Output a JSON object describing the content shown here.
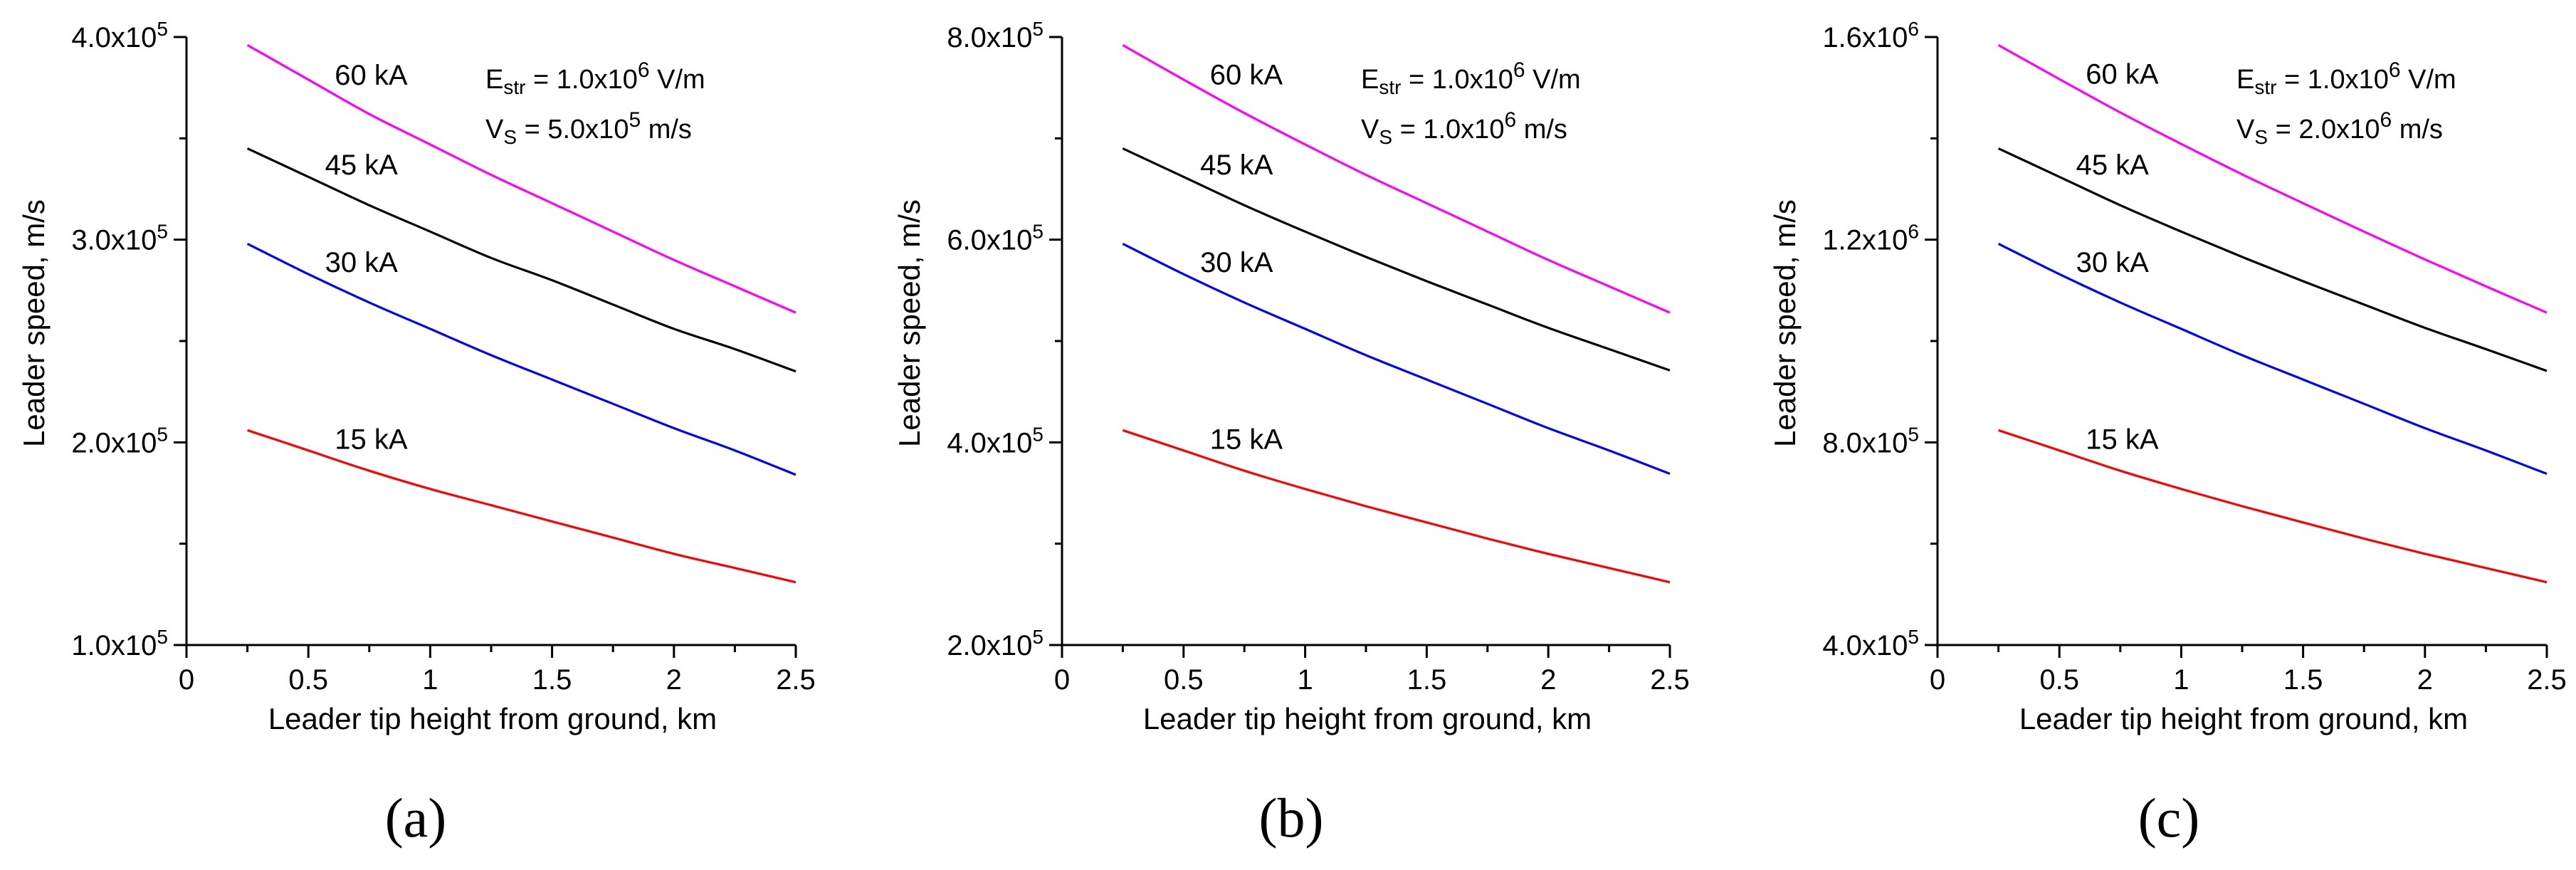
{
  "figure": {
    "panel_labels": [
      "(a)",
      "(b)",
      "(c)"
    ]
  },
  "chart_data": [
    {
      "type": "line",
      "panel": "(a)",
      "xlabel": "Leader tip height from ground, km",
      "ylabel": "Leader speed, m/s",
      "xlim": [
        0,
        2.5
      ],
      "ylim": [
        100000,
        400000
      ],
      "x_ticks": [
        "0",
        "0.5",
        "1",
        "1.5",
        "2",
        "2.5"
      ],
      "y_ticks": [
        {
          "value": 100000,
          "mantissa": "1.0x10",
          "exp": "5"
        },
        {
          "value": 200000,
          "mantissa": "2.0x10",
          "exp": "5"
        },
        {
          "value": 300000,
          "mantissa": "3.0x10",
          "exp": "5"
        },
        {
          "value": 400000,
          "mantissa": "4.0x10",
          "exp": "5"
        }
      ],
      "grid": false,
      "annotation": {
        "line1": {
          "sym": "E",
          "sub": "str",
          "text": " = 1.0x10",
          "sup": "6",
          "unit": " V/m"
        },
        "line2": {
          "sym": "V",
          "sub": "S",
          "text": " = 5.0x10",
          "sup": "5",
          "unit": " m/s"
        }
      },
      "x": [
        0.25,
        0.5,
        0.75,
        1.0,
        1.25,
        1.5,
        1.75,
        2.0,
        2.25,
        2.5
      ],
      "series": [
        {
          "name": "60 kA",
          "color": "#ff00ff",
          "values": [
            396000,
            379000,
            362000,
            347000,
            332000,
            318000,
            304000,
            290000,
            277000,
            264000
          ]
        },
        {
          "name": "45 kA",
          "color": "#000000",
          "values": [
            345000,
            331000,
            317000,
            304000,
            291000,
            280000,
            268000,
            256000,
            246000,
            235000
          ]
        },
        {
          "name": "30 kA",
          "color": "#0000ff",
          "values": [
            298000,
            283000,
            269000,
            256000,
            243000,
            231000,
            219000,
            207000,
            196000,
            184000
          ]
        },
        {
          "name": "15 kA",
          "color": "#ff0000",
          "values": [
            206000,
            196000,
            186000,
            177000,
            169000,
            161000,
            153000,
            145000,
            138000,
            131000
          ]
        }
      ]
    },
    {
      "type": "line",
      "panel": "(b)",
      "xlabel": "Leader tip height from ground, km",
      "ylabel": "Leader speed, m/s",
      "xlim": [
        0,
        2.5
      ],
      "ylim": [
        200000,
        800000
      ],
      "x_ticks": [
        "0",
        "0.5",
        "1",
        "1.5",
        "2",
        "2.5"
      ],
      "y_ticks": [
        {
          "value": 200000,
          "mantissa": "2.0x10",
          "exp": "5"
        },
        {
          "value": 400000,
          "mantissa": "4.0x10",
          "exp": "5"
        },
        {
          "value": 600000,
          "mantissa": "6.0x10",
          "exp": "5"
        },
        {
          "value": 800000,
          "mantissa": "8.0x10",
          "exp": "5"
        }
      ],
      "grid": false,
      "annotation": {
        "line1": {
          "sym": "E",
          "sub": "str",
          "text": " = 1.0x10",
          "sup": "6",
          "unit": " V/m"
        },
        "line2": {
          "sym": "V",
          "sub": "S",
          "text": " = 1.0x10",
          "sup": "6",
          "unit": " m/s"
        }
      },
      "x": [
        0.25,
        0.5,
        0.75,
        1.0,
        1.25,
        1.5,
        1.75,
        2.0,
        2.25,
        2.5
      ],
      "series": [
        {
          "name": "60 kA",
          "color": "#ff00ff",
          "values": [
            792000,
            758000,
            725000,
            694000,
            664000,
            636000,
            608000,
            580000,
            554000,
            528000
          ]
        },
        {
          "name": "45 kA",
          "color": "#000000",
          "values": [
            690000,
            662000,
            634000,
            608000,
            583000,
            559000,
            536000,
            513000,
            492000,
            471000
          ]
        },
        {
          "name": "30 kA",
          "color": "#0000ff",
          "values": [
            596000,
            566000,
            538000,
            512000,
            486000,
            462000,
            438000,
            414000,
            392000,
            369000
          ]
        },
        {
          "name": "15 kA",
          "color": "#ff0000",
          "values": [
            412000,
            392000,
            372000,
            354000,
            337000,
            321000,
            305000,
            290000,
            276000,
            262000
          ]
        }
      ]
    },
    {
      "type": "line",
      "panel": "(c)",
      "xlabel": "Leader tip height from ground, km",
      "ylabel": "Leader speed, m/s",
      "xlim": [
        0,
        2.5
      ],
      "ylim": [
        400000,
        1600000
      ],
      "x_ticks": [
        "0",
        "0.5",
        "1",
        "1.5",
        "2",
        "2.5"
      ],
      "y_ticks": [
        {
          "value": 400000,
          "mantissa": "4.0x10",
          "exp": "5"
        },
        {
          "value": 800000,
          "mantissa": "8.0x10",
          "exp": "5"
        },
        {
          "value": 1200000,
          "mantissa": "1.2x10",
          "exp": "6"
        },
        {
          "value": 1600000,
          "mantissa": "1.6x10",
          "exp": "6"
        }
      ],
      "grid": false,
      "annotation": {
        "line1": {
          "sym": "E",
          "sub": "str",
          "text": " = 1.0x10",
          "sup": "6",
          "unit": " V/m"
        },
        "line2": {
          "sym": "V",
          "sub": "S",
          "text": " = 2.0x10",
          "sup": "6",
          "unit": " m/s"
        }
      },
      "x": [
        0.25,
        0.5,
        0.75,
        1.0,
        1.25,
        1.5,
        1.75,
        2.0,
        2.25,
        2.5
      ],
      "series": [
        {
          "name": "60 kA",
          "color": "#ff00ff",
          "values": [
            1584000,
            1517000,
            1451000,
            1389000,
            1329000,
            1272000,
            1216000,
            1161000,
            1108000,
            1056000
          ]
        },
        {
          "name": "45 kA",
          "color": "#000000",
          "values": [
            1380000,
            1324000,
            1268000,
            1216000,
            1166000,
            1118000,
            1072000,
            1026000,
            984000,
            941000
          ]
        },
        {
          "name": "30 kA",
          "color": "#0000ff",
          "values": [
            1192000,
            1132000,
            1076000,
            1024000,
            972000,
            924000,
            876000,
            828000,
            784000,
            738000
          ]
        },
        {
          "name": "15 kA",
          "color": "#ff0000",
          "values": [
            824000,
            784000,
            744000,
            708000,
            674000,
            642000,
            610000,
            580000,
            552000,
            524000
          ]
        }
      ]
    }
  ]
}
